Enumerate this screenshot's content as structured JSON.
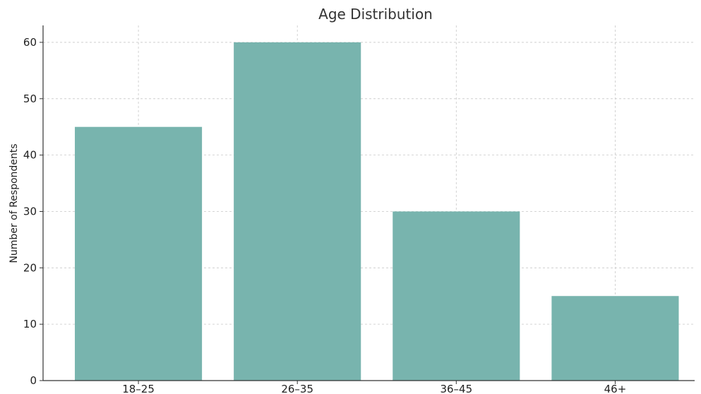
{
  "chart_data": {
    "type": "bar",
    "title": "Age Distribution",
    "xlabel": "",
    "ylabel": "Number of Respondents",
    "categories": [
      "18–25",
      "26–35",
      "36–45",
      "46+"
    ],
    "values": [
      45,
      60,
      30,
      15
    ],
    "ylim": [
      0,
      63
    ],
    "yticks": [
      0,
      10,
      20,
      30,
      40,
      50,
      60
    ],
    "grid": true,
    "bar_color": "#78b4ae"
  }
}
